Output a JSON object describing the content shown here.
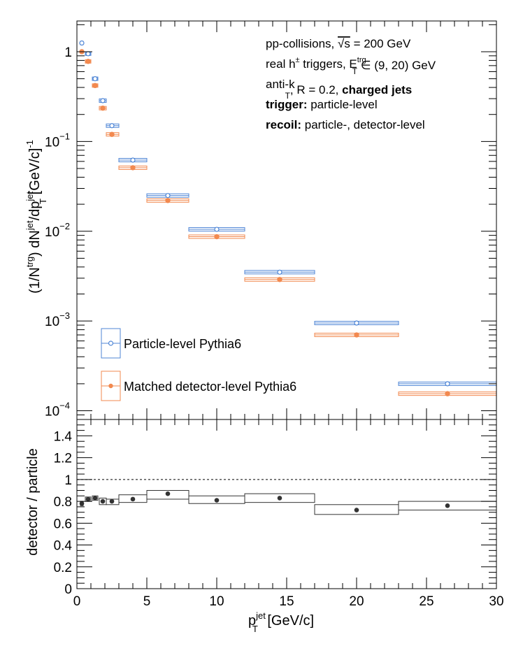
{
  "chart_data": [
    {
      "type": "scatter",
      "name": "spectrum-panel",
      "yscale": "log",
      "xlim": [
        0,
        30
      ],
      "ylim": [
        8e-05,
        2.2
      ],
      "ylabel": "(1/N^trg) dN^jet/dp_T^jet [GeV/c]^-1",
      "yticks": [
        {
          "value": 1,
          "label": "1"
        },
        {
          "value": 0.1,
          "label": "10",
          "exp": "−1"
        },
        {
          "value": 0.01,
          "label": "10",
          "exp": "−2"
        },
        {
          "value": 0.001,
          "label": "10",
          "exp": "−3"
        },
        {
          "value": 0.0001,
          "label": "10",
          "exp": "−4"
        }
      ],
      "annotations": [
        {
          "parts": [
            {
              "t": "pp-collisions, "
            },
            {
              "t": "√s",
              "over": true
            },
            {
              "t": " = 200 GeV"
            }
          ]
        },
        {
          "parts": [
            {
              "t": "real h"
            },
            {
              "t": "±",
              "sup": true
            },
            {
              "t": " triggers, E"
            },
            {
              "t": "trg",
              "sup": true
            },
            {
              "t": "T",
              "sub": true
            },
            {
              "t": " ∈ (9, 20) GeV"
            }
          ]
        },
        {
          "parts": [
            {
              "t": "anti-k"
            },
            {
              "t": "T",
              "sub": true
            },
            {
              "t": ", R = 0.2, "
            },
            {
              "t": "charged jets",
              "bold": true
            }
          ]
        },
        {
          "parts": [
            {
              "t": "trigger:",
              "bold": true
            },
            {
              "t": " particle-level"
            }
          ]
        },
        {
          "parts": [
            {
              "t": "recoil:",
              "bold": true
            },
            {
              "t": " particle-, detector-level"
            }
          ]
        }
      ],
      "legend": {
        "position": "bottom-left",
        "entries": [
          {
            "label": "Particle-level Pythia6",
            "color": "#4f86d6",
            "marker": "open-circle"
          },
          {
            "label": "Matched detector-level Pythia6",
            "color": "#f2894f",
            "marker": "filled-circle"
          }
        ]
      },
      "series": [
        {
          "name": "Particle-level Pythia6",
          "color": "#4f86d6",
          "marker": "open-circle",
          "bins": [
            {
              "x": 0.35,
              "lo": 0.25,
              "hi": 0.45,
              "y": 1.25
            },
            {
              "x": 0.8,
              "lo": 0.6,
              "hi": 1.0,
              "y": 0.95
            },
            {
              "x": 1.3,
              "lo": 1.1,
              "hi": 1.5,
              "y": 0.5
            },
            {
              "x": 1.85,
              "lo": 1.6,
              "hi": 2.1,
              "y": 0.285
            },
            {
              "x": 2.5,
              "lo": 2.1,
              "hi": 3.0,
              "y": 0.15
            },
            {
              "x": 4.0,
              "lo": 3.0,
              "hi": 5.0,
              "y": 0.062
            },
            {
              "x": 6.5,
              "lo": 5.0,
              "hi": 8.0,
              "y": 0.025
            },
            {
              "x": 10.0,
              "lo": 8.0,
              "hi": 12.0,
              "y": 0.0105
            },
            {
              "x": 14.5,
              "lo": 12.0,
              "hi": 17.0,
              "y": 0.0035
            },
            {
              "x": 20.0,
              "lo": 17.0,
              "hi": 23.0,
              "y": 0.00095
            },
            {
              "x": 26.5,
              "lo": 23.0,
              "hi": 30.0,
              "y": 0.0002
            }
          ]
        },
        {
          "name": "Matched detector-level Pythia6",
          "color": "#f2894f",
          "marker": "filled-circle",
          "bins": [
            {
              "x": 0.35,
              "lo": 0.25,
              "hi": 0.45,
              "y": 1.0
            },
            {
              "x": 0.8,
              "lo": 0.6,
              "hi": 1.0,
              "y": 0.78
            },
            {
              "x": 1.3,
              "lo": 1.1,
              "hi": 1.5,
              "y": 0.42
            },
            {
              "x": 1.85,
              "lo": 1.6,
              "hi": 2.1,
              "y": 0.235
            },
            {
              "x": 2.5,
              "lo": 2.1,
              "hi": 3.0,
              "y": 0.12
            },
            {
              "x": 4.0,
              "lo": 3.0,
              "hi": 5.0,
              "y": 0.051
            },
            {
              "x": 6.5,
              "lo": 5.0,
              "hi": 8.0,
              "y": 0.022
            },
            {
              "x": 10.0,
              "lo": 8.0,
              "hi": 12.0,
              "y": 0.0087
            },
            {
              "x": 14.5,
              "lo": 12.0,
              "hi": 17.0,
              "y": 0.0029
            },
            {
              "x": 20.0,
              "lo": 17.0,
              "hi": 23.0,
              "y": 0.0007
            },
            {
              "x": 26.5,
              "lo": 23.0,
              "hi": 30.0,
              "y": 0.000155
            }
          ]
        }
      ]
    },
    {
      "type": "scatter",
      "name": "ratio-panel",
      "yscale": "linear",
      "xlim": [
        0,
        30
      ],
      "ylim": [
        0,
        1.55
      ],
      "xlabel": "p_T^jet [GeV/c]",
      "ylabel": "detector / particle",
      "reference_line": 1.0,
      "yticks": [
        {
          "value": 0,
          "label": "0"
        },
        {
          "value": 0.2,
          "label": "0.2"
        },
        {
          "value": 0.4,
          "label": "0.4"
        },
        {
          "value": 0.6,
          "label": "0.6"
        },
        {
          "value": 0.8,
          "label": "0.8"
        },
        {
          "value": 1.0,
          "label": "1"
        },
        {
          "value": 1.2,
          "label": "1.2"
        },
        {
          "value": 1.4,
          "label": "1.4"
        }
      ],
      "xticks": [
        {
          "value": 0,
          "label": "0"
        },
        {
          "value": 5,
          "label": "5"
        },
        {
          "value": 10,
          "label": "10"
        },
        {
          "value": 15,
          "label": "15"
        },
        {
          "value": 20,
          "label": "20"
        },
        {
          "value": 25,
          "label": "25"
        },
        {
          "value": 30,
          "label": "30"
        }
      ],
      "series": [
        {
          "name": "",
          "color": "#333333",
          "marker": "filled-circle",
          "bins": [
            {
              "x": 0.35,
              "lo": 0.25,
              "hi": 0.45,
              "y": 0.78,
              "ylo": 0.76,
              "yhi": 0.8
            },
            {
              "x": 0.8,
              "lo": 0.6,
              "hi": 1.0,
              "y": 0.82,
              "ylo": 0.8,
              "yhi": 0.84
            },
            {
              "x": 1.3,
              "lo": 1.1,
              "hi": 1.5,
              "y": 0.83,
              "ylo": 0.81,
              "yhi": 0.85
            },
            {
              "x": 1.85,
              "lo": 1.6,
              "hi": 2.1,
              "y": 0.8,
              "ylo": 0.77,
              "yhi": 0.83
            },
            {
              "x": 2.5,
              "lo": 2.1,
              "hi": 3.0,
              "y": 0.8,
              "ylo": 0.77,
              "yhi": 0.82
            },
            {
              "x": 4.0,
              "lo": 3.0,
              "hi": 5.0,
              "y": 0.82,
              "ylo": 0.79,
              "yhi": 0.86
            },
            {
              "x": 6.5,
              "lo": 5.0,
              "hi": 8.0,
              "y": 0.87,
              "ylo": 0.82,
              "yhi": 0.9
            },
            {
              "x": 10.0,
              "lo": 8.0,
              "hi": 12.0,
              "y": 0.81,
              "ylo": 0.78,
              "yhi": 0.85
            },
            {
              "x": 14.5,
              "lo": 12.0,
              "hi": 17.0,
              "y": 0.83,
              "ylo": 0.79,
              "yhi": 0.87
            },
            {
              "x": 20.0,
              "lo": 17.0,
              "hi": 23.0,
              "y": 0.72,
              "ylo": 0.68,
              "yhi": 0.77
            },
            {
              "x": 26.5,
              "lo": 23.0,
              "hi": 30.0,
              "y": 0.76,
              "ylo": 0.72,
              "yhi": 0.8
            }
          ]
        }
      ]
    }
  ]
}
